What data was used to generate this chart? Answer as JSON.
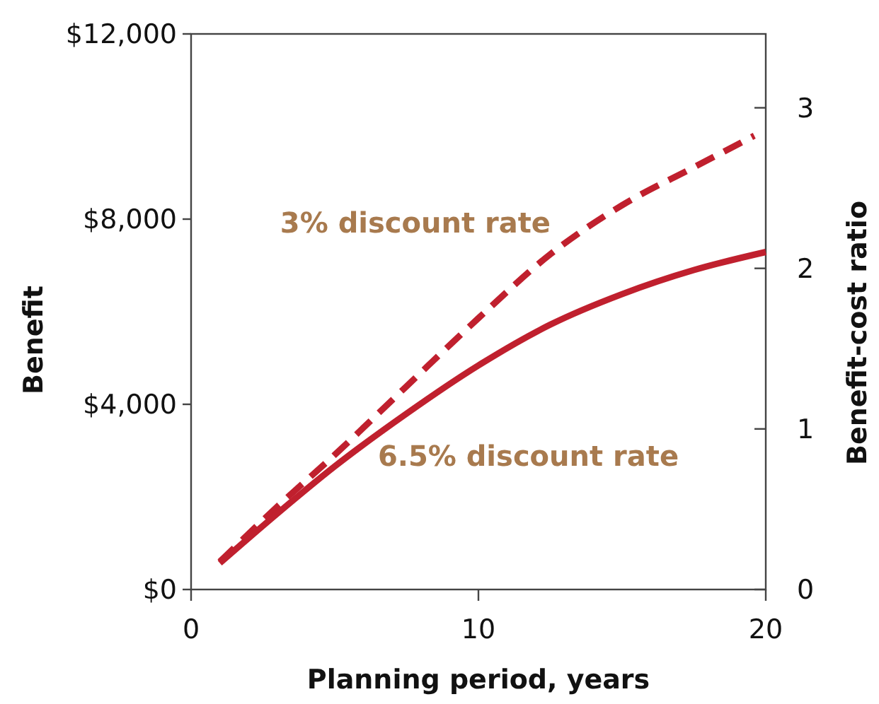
{
  "chart_data": {
    "type": "line",
    "xlabel": "Planning period, years",
    "ylabel": "Benefit",
    "y2label": "Benefit-cost ratio",
    "xlim": [
      0,
      20
    ],
    "xticks": [
      0,
      10,
      20
    ],
    "ylim": [
      0,
      12000
    ],
    "yticks": [
      {
        "value": 0,
        "label": "$0"
      },
      {
        "value": 4000,
        "label": "$4,000"
      },
      {
        "value": 8000,
        "label": "$8,000"
      },
      {
        "value": 12000,
        "label": "$12,000"
      }
    ],
    "y2lim": [
      0,
      3.46
    ],
    "y2ticks": [
      0,
      1,
      2,
      3
    ],
    "series": [
      {
        "name": "3% discount rate",
        "color": "#c0202e",
        "line_style": "dashed",
        "x": [
          1,
          3,
          5,
          7.5,
          10,
          12.5,
          15,
          17.5,
          19.6
        ],
        "values": [
          600,
          1790,
          2910,
          4390,
          5860,
          7240,
          8300,
          9120,
          9800
        ]
      },
      {
        "name": "6.5% discount rate",
        "color": "#c0202e",
        "line_style": "solid",
        "x": [
          1,
          3,
          5,
          7.5,
          10,
          12.5,
          15,
          17.5,
          20
        ],
        "values": [
          570,
          1640,
          2660,
          3800,
          4840,
          5720,
          6380,
          6900,
          7290
        ]
      }
    ]
  }
}
